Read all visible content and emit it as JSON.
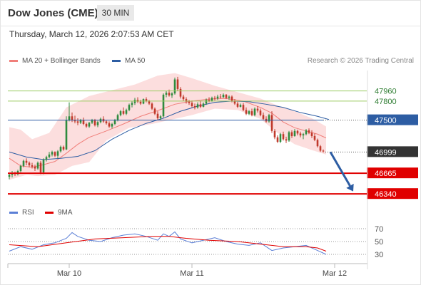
{
  "header": {
    "instrument": "Dow Jones (CME)",
    "interval": "30 MIN",
    "datetime": "Thursday, March 12, 2026 2:07:53 AM CET",
    "copyright": "Research © 2026 Trading Central"
  },
  "legend": {
    "ma20_label": "MA 20 + Bollinger Bands",
    "ma50_label": "MA 50",
    "rsi_label": "RSI",
    "rsi_ma_label": "9MA"
  },
  "colors": {
    "ma20": "#f07f7a",
    "bands": "#fbd8d8",
    "ma50": "#2d5da3",
    "up": "#2e8b3e",
    "down": "#c0392b",
    "resistance": "#9ccc65",
    "pivot": "#2d5da3",
    "support": "#e00000",
    "current_price_bg": "#333333",
    "forecast_arrow": "#2d5da3",
    "rsi": "#5b7fd6",
    "rsi_ma": "#e00000"
  },
  "chart_data": [
    {
      "type": "line",
      "subtype": "candlestick",
      "title": "Dow Jones (CME)",
      "interval": "30 MIN",
      "ylim": [
        46230,
        48280
      ],
      "x_tick_labels": [
        "Mar 10",
        "Mar 11",
        "Mar 12"
      ],
      "x_tick_index": [
        21,
        64,
        114
      ],
      "candle_count": 120,
      "ohlc": [
        [
          46610,
          46660,
          46570,
          46640
        ],
        [
          46640,
          46700,
          46600,
          46670
        ],
        [
          46670,
          46690,
          46620,
          46650
        ],
        [
          46650,
          46720,
          46630,
          46700
        ],
        [
          46700,
          46800,
          46680,
          46780
        ],
        [
          46780,
          46880,
          46760,
          46860
        ],
        [
          46860,
          46900,
          46790,
          46830
        ],
        [
          46830,
          46850,
          46760,
          46790
        ],
        [
          46790,
          46830,
          46740,
          46770
        ],
        [
          46770,
          46800,
          46700,
          46740
        ],
        [
          46740,
          46850,
          46720,
          46830
        ],
        [
          46830,
          46860,
          46650,
          46680
        ],
        [
          46680,
          46900,
          46650,
          46880
        ],
        [
          46880,
          46940,
          46850,
          46920
        ],
        [
          46920,
          47000,
          46900,
          46960
        ],
        [
          46960,
          47020,
          46930,
          47000
        ],
        [
          47000,
          47010,
          46920,
          46940
        ],
        [
          46940,
          47030,
          46900,
          47010
        ],
        [
          47010,
          47100,
          46990,
          47080
        ],
        [
          47080,
          47100,
          47020,
          47040
        ],
        [
          47040,
          47560,
          47030,
          47500
        ],
        [
          47500,
          47780,
          47480,
          47560
        ],
        [
          47560,
          47620,
          47470,
          47500
        ],
        [
          47500,
          47570,
          47450,
          47480
        ],
        [
          47480,
          47530,
          47420,
          47460
        ],
        [
          47460,
          47520,
          47440,
          47500
        ],
        [
          47500,
          47540,
          47420,
          47440
        ],
        [
          47440,
          47460,
          47380,
          47400
        ],
        [
          47400,
          47470,
          47380,
          47460
        ],
        [
          47460,
          47520,
          47440,
          47500
        ],
        [
          47500,
          47520,
          47400,
          47420
        ],
        [
          47420,
          47490,
          47390,
          47470
        ],
        [
          47470,
          47540,
          47450,
          47520
        ],
        [
          47520,
          47560,
          47460,
          47480
        ],
        [
          47480,
          47500,
          47430,
          47450
        ],
        [
          47450,
          47480,
          47380,
          47400
        ],
        [
          47400,
          47460,
          47370,
          47440
        ],
        [
          47440,
          47520,
          47420,
          47500
        ],
        [
          47500,
          47600,
          47480,
          47580
        ],
        [
          47580,
          47660,
          47560,
          47640
        ],
        [
          47640,
          47700,
          47580,
          47600
        ],
        [
          47600,
          47680,
          47580,
          47660
        ],
        [
          47660,
          47760,
          47640,
          47740
        ],
        [
          47740,
          47800,
          47700,
          47770
        ],
        [
          47770,
          47850,
          47740,
          47820
        ],
        [
          47820,
          47860,
          47770,
          47790
        ],
        [
          47790,
          47820,
          47740,
          47760
        ],
        [
          47760,
          47840,
          47750,
          47830
        ],
        [
          47830,
          47860,
          47780,
          47800
        ],
        [
          47800,
          47820,
          47740,
          47760
        ],
        [
          47760,
          47780,
          47660,
          47680
        ],
        [
          47680,
          47700,
          47580,
          47600
        ],
        [
          47600,
          47640,
          47500,
          47530
        ],
        [
          47530,
          47580,
          47500,
          47560
        ],
        [
          47560,
          47920,
          47540,
          47900
        ],
        [
          47900,
          47960,
          47860,
          47930
        ],
        [
          47930,
          47980,
          47870,
          47890
        ],
        [
          47890,
          47940,
          47850,
          47920
        ],
        [
          47920,
          48170,
          47900,
          48140
        ],
        [
          48140,
          48180,
          47960,
          47990
        ],
        [
          47990,
          48020,
          47840,
          47870
        ],
        [
          47870,
          47900,
          47800,
          47830
        ],
        [
          47830,
          47860,
          47760,
          47790
        ],
        [
          47790,
          47820,
          47740,
          47770
        ],
        [
          47770,
          47810,
          47700,
          47720
        ],
        [
          47720,
          47760,
          47670,
          47700
        ],
        [
          47700,
          47780,
          47680,
          47750
        ],
        [
          47750,
          47800,
          47690,
          47710
        ],
        [
          47710,
          47780,
          47700,
          47760
        ],
        [
          47760,
          47840,
          47740,
          47820
        ],
        [
          47820,
          47860,
          47780,
          47800
        ],
        [
          47800,
          47870,
          47790,
          47850
        ],
        [
          47850,
          47880,
          47810,
          47840
        ],
        [
          47840,
          47900,
          47820,
          47870
        ],
        [
          47870,
          47910,
          47840,
          47860
        ],
        [
          47860,
          47920,
          47850,
          47900
        ],
        [
          47900,
          47910,
          47830,
          47850
        ],
        [
          47850,
          47890,
          47820,
          47870
        ],
        [
          47870,
          47890,
          47780,
          47800
        ],
        [
          47800,
          47830,
          47740,
          47760
        ],
        [
          47760,
          47790,
          47690,
          47710
        ],
        [
          47710,
          47760,
          47700,
          47740
        ],
        [
          47740,
          47770,
          47640,
          47660
        ],
        [
          47660,
          47700,
          47580,
          47600
        ],
        [
          47600,
          47660,
          47580,
          47640
        ],
        [
          47640,
          47680,
          47560,
          47580
        ],
        [
          47580,
          47700,
          47560,
          47680
        ],
        [
          47680,
          47720,
          47620,
          47650
        ],
        [
          47650,
          47680,
          47560,
          47580
        ],
        [
          47580,
          47620,
          47500,
          47520
        ],
        [
          47520,
          47560,
          47460,
          47480
        ],
        [
          47480,
          47600,
          47460,
          47580
        ],
        [
          47580,
          47640,
          47300,
          47330
        ],
        [
          47330,
          47360,
          47200,
          47230
        ],
        [
          47230,
          47260,
          47140,
          47160
        ],
        [
          47160,
          47300,
          47140,
          47280
        ],
        [
          47280,
          47320,
          47180,
          47200
        ],
        [
          47200,
          47240,
          47140,
          47180
        ],
        [
          47180,
          47330,
          47160,
          47310
        ],
        [
          47310,
          47340,
          47220,
          47250
        ],
        [
          47250,
          47360,
          47240,
          47330
        ],
        [
          47330,
          47350,
          47260,
          47290
        ],
        [
          47290,
          47320,
          47230,
          47260
        ],
        [
          47260,
          47300,
          47200,
          47280
        ],
        [
          47280,
          47360,
          47260,
          47340
        ],
        [
          47340,
          47370,
          47280,
          47300
        ],
        [
          47300,
          47340,
          47220,
          47250
        ],
        [
          47250,
          47290,
          47170,
          47190
        ],
        [
          47190,
          47210,
          47070,
          47090
        ],
        [
          47090,
          47110,
          47000,
          47020
        ],
        [
          47020,
          47040,
          46990,
          47010
        ]
      ],
      "ma20": [
        [
          0,
          46900
        ],
        [
          4,
          46780
        ],
        [
          8,
          46760
        ],
        [
          12,
          46800
        ],
        [
          16,
          46850
        ],
        [
          20,
          46980
        ],
        [
          24,
          47120
        ],
        [
          28,
          47230
        ],
        [
          34,
          47330
        ],
        [
          40,
          47440
        ],
        [
          46,
          47560
        ],
        [
          52,
          47650
        ],
        [
          58,
          47750
        ],
        [
          64,
          47800
        ],
        [
          70,
          47830
        ],
        [
          76,
          47840
        ],
        [
          82,
          47800
        ],
        [
          88,
          47700
        ],
        [
          92,
          47610
        ],
        [
          96,
          47470
        ],
        [
          100,
          47380
        ],
        [
          104,
          47330
        ],
        [
          108,
          47280
        ],
        [
          111,
          47220
        ]
      ],
      "upper_band": [
        [
          0,
          47390
        ],
        [
          4,
          47350
        ],
        [
          8,
          47200
        ],
        [
          14,
          47300
        ],
        [
          20,
          47700
        ],
        [
          28,
          47880
        ],
        [
          36,
          47970
        ],
        [
          44,
          48060
        ],
        [
          52,
          48200
        ],
        [
          58,
          48240
        ],
        [
          64,
          48160
        ],
        [
          72,
          48040
        ],
        [
          80,
          47940
        ],
        [
          88,
          47840
        ],
        [
          94,
          47730
        ],
        [
          100,
          47640
        ],
        [
          106,
          47530
        ],
        [
          111,
          47400
        ]
      ],
      "lower_band": [
        [
          0,
          46560
        ],
        [
          6,
          46640
        ],
        [
          10,
          46620
        ],
        [
          16,
          46640
        ],
        [
          22,
          46780
        ],
        [
          28,
          46840
        ],
        [
          34,
          47180
        ],
        [
          42,
          47380
        ],
        [
          50,
          47440
        ],
        [
          56,
          47500
        ],
        [
          64,
          47580
        ],
        [
          72,
          47680
        ],
        [
          80,
          47660
        ],
        [
          88,
          47520
        ],
        [
          94,
          47300
        ],
        [
          100,
          47120
        ],
        [
          106,
          47030
        ],
        [
          111,
          46960
        ]
      ],
      "ma50": [
        [
          0,
          47000
        ],
        [
          6,
          46920
        ],
        [
          12,
          46880
        ],
        [
          18,
          46900
        ],
        [
          24,
          46930
        ],
        [
          30,
          47020
        ],
        [
          36,
          47200
        ],
        [
          42,
          47340
        ],
        [
          48,
          47450
        ],
        [
          54,
          47530
        ],
        [
          60,
          47640
        ],
        [
          66,
          47720
        ],
        [
          72,
          47780
        ],
        [
          78,
          47800
        ],
        [
          84,
          47790
        ],
        [
          90,
          47750
        ],
        [
          96,
          47700
        ],
        [
          102,
          47620
        ],
        [
          108,
          47560
        ],
        [
          112,
          47510
        ]
      ],
      "levels": [
        {
          "label": "47960",
          "value": 47960,
          "kind": "resistance"
        },
        {
          "label": "47800",
          "value": 47800,
          "kind": "resistance"
        },
        {
          "label": "47500",
          "value": 47500,
          "kind": "pivot"
        },
        {
          "label": "46999",
          "value": 46999,
          "kind": "current"
        },
        {
          "label": "46665",
          "value": 46665,
          "kind": "support"
        },
        {
          "label": "46340",
          "value": 46340,
          "kind": "support"
        }
      ],
      "forecast_arrow": {
        "from": [
          112,
          46999
        ],
        "to": [
          119,
          46380
        ]
      }
    },
    {
      "type": "line",
      "title": "RSI",
      "ylim": [
        20,
        80
      ],
      "y_ticks": [
        70,
        50,
        30
      ],
      "series": [
        {
          "name": "RSI",
          "values": [
            [
              0,
              35
            ],
            [
              4,
              42
            ],
            [
              8,
              38
            ],
            [
              12,
              45
            ],
            [
              16,
              48
            ],
            [
              20,
              55
            ],
            [
              22,
              64
            ],
            [
              24,
              58
            ],
            [
              28,
              52
            ],
            [
              32,
              50
            ],
            [
              36,
              56
            ],
            [
              40,
              60
            ],
            [
              44,
              62
            ],
            [
              48,
              58
            ],
            [
              52,
              52
            ],
            [
              54,
              62
            ],
            [
              56,
              58
            ],
            [
              58,
              65
            ],
            [
              60,
              54
            ],
            [
              64,
              48
            ],
            [
              68,
              52
            ],
            [
              72,
              56
            ],
            [
              76,
              50
            ],
            [
              80,
              46
            ],
            [
              84,
              44
            ],
            [
              88,
              48
            ],
            [
              92,
              36
            ],
            [
              96,
              40
            ],
            [
              100,
              42
            ],
            [
              104,
              44
            ],
            [
              108,
              36
            ],
            [
              111,
              30
            ]
          ]
        },
        {
          "name": "9MA",
          "values": [
            [
              0,
              45
            ],
            [
              10,
              42
            ],
            [
              20,
              48
            ],
            [
              30,
              54
            ],
            [
              40,
              56
            ],
            [
              50,
              58
            ],
            [
              56,
              58
            ],
            [
              62,
              55
            ],
            [
              70,
              52
            ],
            [
              80,
              50
            ],
            [
              88,
              46
            ],
            [
              96,
              42
            ],
            [
              104,
              42
            ],
            [
              108,
              40
            ],
            [
              111,
              35
            ]
          ]
        }
      ]
    }
  ]
}
